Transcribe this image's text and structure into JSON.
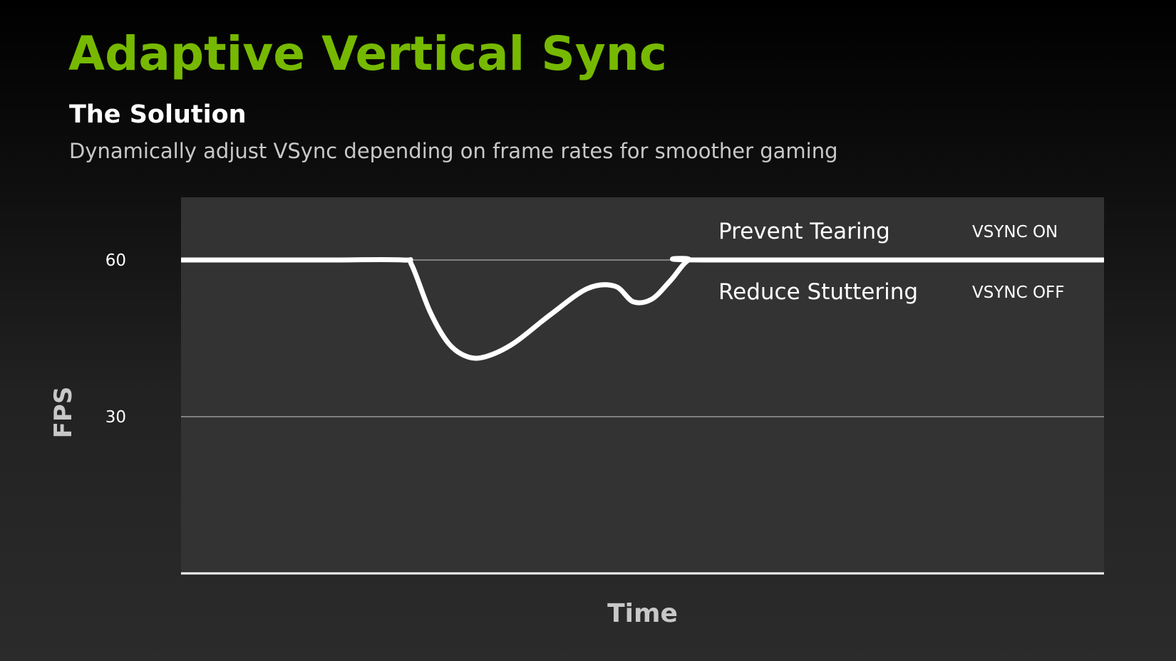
{
  "slide": {
    "title": "Adaptive Vertical Sync",
    "subtitle": "The Solution",
    "description": "Dynamically adjust VSync depending on frame rates for smoother gaming"
  },
  "colors": {
    "title": "#76b900",
    "plot_background": "#333333",
    "line": "#ffffff",
    "gridline": "#808080"
  },
  "chart_data": {
    "type": "line",
    "xlabel": "Time",
    "ylabel": "FPS",
    "ylim": [
      0,
      72
    ],
    "yticks": [
      {
        "value": 60,
        "label": "60"
      },
      {
        "value": 30,
        "label": "30"
      }
    ],
    "grid": true,
    "series": [
      {
        "x": [
          0,
          8,
          16,
          24,
          25,
          27,
          29,
          31,
          33,
          36,
          40,
          44,
          47,
          49,
          51,
          53,
          55,
          57,
          100
        ],
        "y": [
          60,
          60,
          60,
          60,
          59,
          50,
          44,
          41.5,
          41.5,
          44,
          49.5,
          54.5,
          55,
          52,
          52.5,
          56,
          60,
          60,
          60
        ]
      }
    ],
    "annotations": [
      {
        "text": "Prevent Tearing",
        "tag": "VSYNC ON",
        "position": "above-60"
      },
      {
        "text": "Reduce Stuttering",
        "tag": "VSYNC OFF",
        "position": "below-60"
      }
    ]
  }
}
